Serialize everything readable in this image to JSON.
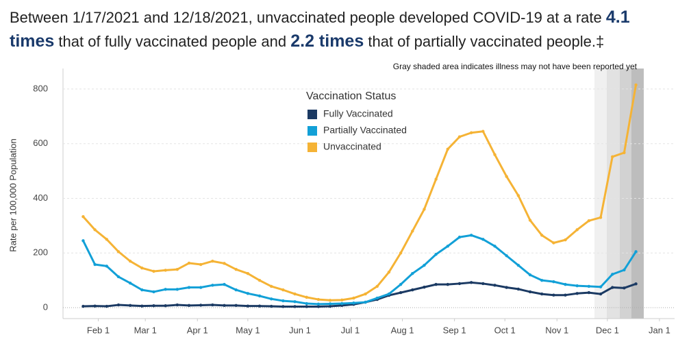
{
  "chart_data": {
    "type": "line",
    "title": [
      "Between 1/17/2021 and 12/18/2021, unvaccinated people developed COVID-19 at a rate ",
      "4.1 times",
      " that of fully vaccinated people and ",
      "2.2 times",
      " that of partially vaccinated people.‡"
    ],
    "annotation": "Gray shaded area indicates illness may not have been reported yet",
    "y_label": "Rate per 100,000 Population",
    "legend_title": "Vaccination Status",
    "x": [
      "2021-01-23",
      "2021-01-30",
      "2021-02-06",
      "2021-02-13",
      "2021-02-20",
      "2021-02-27",
      "2021-03-06",
      "2021-03-13",
      "2021-03-20",
      "2021-03-27",
      "2021-04-03",
      "2021-04-10",
      "2021-04-17",
      "2021-04-24",
      "2021-05-01",
      "2021-05-08",
      "2021-05-15",
      "2021-05-22",
      "2021-05-29",
      "2021-06-05",
      "2021-06-12",
      "2021-06-19",
      "2021-06-26",
      "2021-07-03",
      "2021-07-10",
      "2021-07-17",
      "2021-07-24",
      "2021-07-31",
      "2021-08-07",
      "2021-08-14",
      "2021-08-21",
      "2021-08-28",
      "2021-09-04",
      "2021-09-11",
      "2021-09-18",
      "2021-09-25",
      "2021-10-02",
      "2021-10-09",
      "2021-10-16",
      "2021-10-23",
      "2021-10-30",
      "2021-11-06",
      "2021-11-13",
      "2021-11-20",
      "2021-11-27",
      "2021-12-04",
      "2021-12-11",
      "2021-12-18"
    ],
    "series": [
      {
        "name": "Fully Vaccinated",
        "color": "#1b3a63",
        "values": [
          5,
          6,
          5,
          10,
          8,
          6,
          7,
          7,
          10,
          8,
          9,
          10,
          8,
          8,
          6,
          6,
          5,
          4,
          4,
          4,
          4,
          5,
          8,
          12,
          20,
          30,
          45,
          55,
          65,
          75,
          85,
          85,
          88,
          92,
          88,
          82,
          74,
          68,
          58,
          50,
          46,
          46,
          52,
          55,
          50,
          74,
          72,
          87
        ]
      },
      {
        "name": "Partially Vaccinated",
        "color": "#12a0d7",
        "values": [
          245,
          158,
          152,
          113,
          90,
          65,
          58,
          67,
          67,
          74,
          74,
          82,
          85,
          65,
          52,
          43,
          32,
          25,
          22,
          15,
          13,
          14,
          15,
          17,
          20,
          35,
          50,
          85,
          125,
          155,
          195,
          225,
          258,
          265,
          250,
          225,
          190,
          155,
          120,
          100,
          95,
          85,
          80,
          78,
          76,
          122,
          138,
          205
        ]
      },
      {
        "name": "Unvaccinated",
        "color": "#f5b335",
        "values": [
          333,
          285,
          250,
          205,
          170,
          145,
          133,
          137,
          140,
          163,
          158,
          170,
          162,
          140,
          125,
          100,
          78,
          65,
          50,
          38,
          30,
          27,
          28,
          35,
          50,
          78,
          130,
          200,
          280,
          360,
          470,
          580,
          625,
          640,
          645,
          560,
          480,
          410,
          320,
          265,
          237,
          248,
          285,
          318,
          330,
          552,
          567,
          815
        ]
      }
    ],
    "xlim": [
      "2021-01-11",
      "2022-01-10"
    ],
    "xticks": [
      {
        "value": "2021-02-01",
        "label": "Feb 1"
      },
      {
        "value": "2021-03-01",
        "label": "Mar 1"
      },
      {
        "value": "2021-04-01",
        "label": "Apr 1"
      },
      {
        "value": "2021-05-01",
        "label": "May 1"
      },
      {
        "value": "2021-06-01",
        "label": "Jun 1"
      },
      {
        "value": "2021-07-01",
        "label": "Jul 1"
      },
      {
        "value": "2021-08-01",
        "label": "Aug 1"
      },
      {
        "value": "2021-09-01",
        "label": "Sep 1"
      },
      {
        "value": "2021-10-01",
        "label": "Oct 1"
      },
      {
        "value": "2021-11-01",
        "label": "Nov 1"
      },
      {
        "value": "2021-12-01",
        "label": "Dec 1"
      },
      {
        "value": "2022-01-01",
        "label": "Jan 1"
      }
    ],
    "ylim": [
      -40,
      875
    ],
    "yticks": [
      0,
      200,
      400,
      600,
      800
    ],
    "grid": true
  }
}
